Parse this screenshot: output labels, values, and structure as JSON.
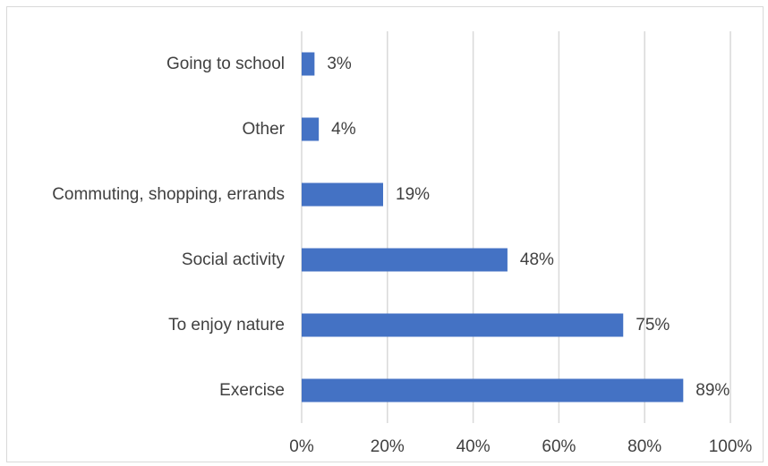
{
  "chart_data": {
    "type": "bar",
    "orientation": "horizontal",
    "categories": [
      "Going to school",
      "Other",
      "Commuting, shopping, errands",
      "Social activity",
      "To enjoy nature",
      "Exercise"
    ],
    "values": [
      3,
      4,
      19,
      48,
      75,
      89
    ],
    "value_labels": [
      "3%",
      "4%",
      "19%",
      "48%",
      "75%",
      "89%"
    ],
    "x_ticks": [
      0,
      20,
      40,
      60,
      80,
      100
    ],
    "x_tick_labels": [
      "0%",
      "20%",
      "40%",
      "60%",
      "80%",
      "100%"
    ],
    "xlim": [
      0,
      100
    ],
    "title": "",
    "xlabel": "",
    "ylabel": "",
    "grid": "vertical",
    "legend": "none",
    "bar_color": "#4472C4",
    "grid_color": "#d9d9d9",
    "text_color": "#404040"
  }
}
